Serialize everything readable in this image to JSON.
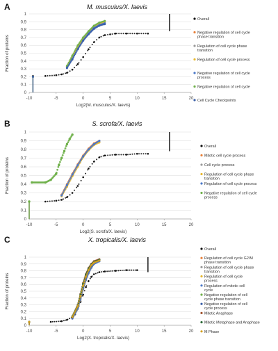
{
  "chart_data": [
    {
      "panel": "A",
      "type": "scatter",
      "title": "M. musculus/X. laevis",
      "xlabel": "Log2(M. musculus/X. laevis)",
      "ylabel": "Fraction of proteins",
      "xlim": [
        -10,
        20
      ],
      "ylim": [
        0,
        1
      ],
      "xticks": [
        -10,
        -5,
        0,
        5,
        10,
        15,
        20
      ],
      "yticks": [
        0,
        0.1,
        0.2,
        0.3,
        0.4,
        0.5,
        0.6,
        0.7,
        0.8,
        0.9,
        1
      ],
      "ytick_labels": [
        "0",
        "0.1",
        "0.2",
        "0.3",
        "0.4",
        "0.5",
        "0.6",
        "0.7",
        "0.8",
        "0.9",
        "1"
      ],
      "series": [
        {
          "name": "Overall",
          "color": "#111111",
          "size": 1.0,
          "x": [
            -9.3,
            -7.0,
            -5.0,
            -4.0,
            -3.0,
            -2.0,
            -1.0,
            0.0,
            1.0,
            2.0,
            3.0,
            4.0,
            5.0,
            6.0,
            8.0,
            10.0,
            12.0
          ],
          "y": [
            0.21,
            0.21,
            0.22,
            0.23,
            0.25,
            0.29,
            0.36,
            0.45,
            0.55,
            0.64,
            0.7,
            0.73,
            0.74,
            0.75,
            0.75,
            0.75,
            0.75
          ]
        },
        {
          "name": "Negative regulation of cell cycle phase transition",
          "color": "#e8803a",
          "size": 1.2,
          "x": [
            -9.3,
            -3.0,
            -2.0,
            -1.0,
            0.0,
            1.0,
            2.0,
            3.0,
            4.0
          ],
          "y": [
            0.2,
            0.33,
            0.45,
            0.58,
            0.68,
            0.76,
            0.83,
            0.87,
            0.88
          ]
        },
        {
          "name": "Regulation of cell cycle phase transition",
          "color": "#9a9a9a",
          "size": 1.2,
          "x": [
            -9.3,
            -3.0,
            -2.0,
            -1.0,
            0.0,
            1.0,
            2.0,
            3.0,
            4.0
          ],
          "y": [
            0.2,
            0.32,
            0.44,
            0.57,
            0.68,
            0.76,
            0.83,
            0.87,
            0.89
          ]
        },
        {
          "name": "Regulation of cell cycle process",
          "color": "#e8b830",
          "size": 1.2,
          "x": [
            -9.3,
            -3.0,
            -2.0,
            -1.0,
            0.0,
            1.0,
            2.0,
            3.0,
            4.0
          ],
          "y": [
            0.2,
            0.33,
            0.46,
            0.59,
            0.69,
            0.77,
            0.84,
            0.88,
            0.9
          ]
        },
        {
          "name": "Negative regulation of cell cycle process",
          "color": "#4a78c8",
          "size": 1.2,
          "x": [
            -9.3,
            -3.0,
            -2.0,
            -1.0,
            0.0,
            1.0,
            2.0,
            3.0,
            4.0
          ],
          "y": [
            0.2,
            0.32,
            0.43,
            0.55,
            0.66,
            0.75,
            0.82,
            0.86,
            0.88
          ]
        },
        {
          "name": "Negative regulation of cell cycle",
          "color": "#6fb04a",
          "size": 1.2,
          "x": [
            -9.3,
            -3.0,
            -2.0,
            -1.0,
            0.0,
            1.0,
            2.0,
            3.0,
            4.0
          ],
          "y": [
            0.2,
            0.34,
            0.47,
            0.6,
            0.7,
            0.78,
            0.85,
            0.89,
            0.91
          ]
        },
        {
          "name": "Cell Cycle Checkpoints",
          "color": "#3a5fa8",
          "size": 1.2,
          "x": [
            -9.3,
            -3.0,
            -2.0,
            -1.0,
            0.0,
            1.0,
            2.0,
            3.0,
            4.0
          ],
          "y": [
            0.2,
            0.31,
            0.42,
            0.55,
            0.66,
            0.74,
            0.81,
            0.85,
            0.87
          ]
        }
      ]
    },
    {
      "panel": "B",
      "type": "scatter",
      "title": "S. scrofa/X. laevis",
      "xlabel": "Log2(S. scrofa/X. laevis)",
      "ylabel": "Fraction of proteins",
      "xlim": [
        -10,
        20
      ],
      "ylim": [
        0,
        1
      ],
      "xticks": [
        -10,
        -5,
        0,
        5,
        10,
        15,
        20
      ],
      "yticks": [
        0,
        0.1,
        0.2,
        0.3,
        0.4,
        0.5,
        0.6,
        0.7,
        0.8,
        0.9,
        1
      ],
      "ytick_labels": [
        "0",
        "0.1",
        "0.2",
        "0.3",
        "0.4",
        "0.5",
        "0.6",
        "0.7",
        "0.8",
        "0.9",
        "1"
      ],
      "series": [
        {
          "name": "Overall",
          "color": "#111111",
          "size": 1.0,
          "x": [
            -10.0,
            -7.0,
            -5.0,
            -4.0,
            -3.0,
            -2.0,
            -1.0,
            0.0,
            1.0,
            2.0,
            3.0,
            4.0,
            6.0,
            8.0,
            10.0,
            12.0
          ],
          "y": [
            0.2,
            0.2,
            0.21,
            0.22,
            0.25,
            0.3,
            0.38,
            0.48,
            0.58,
            0.66,
            0.71,
            0.73,
            0.74,
            0.74,
            0.75,
            0.75
          ]
        },
        {
          "name": "Mitotic cell cycle process",
          "color": "#e8803a",
          "size": 1.2,
          "x": [
            -10.0,
            -4.0,
            -3.0,
            -2.0,
            -1.0,
            0.0,
            1.0,
            2.0,
            3.0
          ],
          "y": [
            0.2,
            0.28,
            0.4,
            0.52,
            0.63,
            0.73,
            0.81,
            0.87,
            0.9
          ]
        },
        {
          "name": "Cell cycle process",
          "color": "#9a9a9a",
          "size": 1.2,
          "x": [
            -10.0,
            -4.0,
            -3.0,
            -2.0,
            -1.0,
            0.0,
            1.0,
            2.0,
            3.0
          ],
          "y": [
            0.2,
            0.27,
            0.38,
            0.5,
            0.62,
            0.72,
            0.8,
            0.86,
            0.89
          ]
        },
        {
          "name": "Regulation of cell cycle phase transition",
          "color": "#e8b830",
          "size": 1.2,
          "x": [
            -10.0,
            -4.0,
            -3.0,
            -2.0,
            -1.0,
            0.0,
            1.0,
            2.0,
            3.0
          ],
          "y": [
            0.2,
            0.26,
            0.37,
            0.49,
            0.6,
            0.71,
            0.79,
            0.85,
            0.88
          ]
        },
        {
          "name": "Regulation of cell cycle process",
          "color": "#4a78c8",
          "size": 1.2,
          "x": [
            -10.0,
            -4.0,
            -3.0,
            -2.0,
            -1.0,
            0.0,
            1.0,
            2.0,
            3.0
          ],
          "y": [
            0.2,
            0.27,
            0.39,
            0.51,
            0.62,
            0.72,
            0.8,
            0.86,
            0.9
          ]
        },
        {
          "name": "Negative regulation of cell cycle process",
          "color": "#6fb04a",
          "size": 1.4,
          "x": [
            -10.0,
            -9.5,
            -7.0,
            -6.0,
            -5.0,
            -4.5,
            -4.0,
            -3.5,
            -3.0,
            -2.5,
            -2.0
          ],
          "y": [
            0.2,
            0.42,
            0.42,
            0.45,
            0.52,
            0.62,
            0.7,
            0.78,
            0.86,
            0.92,
            0.97
          ]
        }
      ]
    },
    {
      "panel": "C",
      "type": "scatter",
      "title": "X. tropicalis/X. laevis",
      "xlabel": "Log2(X. tropicalis/X. laevis)",
      "ylabel": "Fraction of proteins",
      "xlim": [
        -10,
        20
      ],
      "ylim": [
        0,
        1
      ],
      "xticks": [
        -10,
        -5,
        0,
        5,
        10,
        15,
        20
      ],
      "yticks": [
        0,
        0.1,
        0.2,
        0.3,
        0.4,
        0.5,
        0.6,
        0.7,
        0.8,
        0.9,
        1
      ],
      "ytick_labels": [
        "0",
        "0.1",
        "0.2",
        "0.3",
        "0.4",
        "0.5",
        "0.6",
        "0.7",
        "0.8",
        "0.9",
        "1"
      ],
      "series": [
        {
          "name": "Overall",
          "color": "#111111",
          "size": 1.0,
          "x": [
            -10.0,
            -6.0,
            -4.0,
            -3.0,
            -2.0,
            -1.5,
            -1.0,
            -0.5,
            0.0,
            0.5,
            1.0,
            1.5,
            2.0,
            3.0,
            4.0,
            6.0,
            8.0,
            10.0
          ],
          "y": [
            0.04,
            0.05,
            0.06,
            0.08,
            0.12,
            0.16,
            0.24,
            0.34,
            0.45,
            0.56,
            0.65,
            0.71,
            0.75,
            0.78,
            0.79,
            0.8,
            0.81,
            0.81
          ]
        },
        {
          "name": "Regulation of cell cycle G2/M phase transition",
          "color": "#e8803a",
          "size": 1.2,
          "x": [
            -10.0,
            -2.0,
            -1.0,
            -0.5,
            0.0,
            0.5,
            1.0,
            1.5,
            2.0,
            3.0
          ],
          "y": [
            0.05,
            0.1,
            0.25,
            0.4,
            0.55,
            0.68,
            0.78,
            0.86,
            0.91,
            0.95
          ]
        },
        {
          "name": "Regulation of cell cycle phase transition",
          "color": "#9a9a9a",
          "size": 1.2,
          "x": [
            -10.0,
            -2.0,
            -1.0,
            -0.5,
            0.0,
            0.5,
            1.0,
            1.5,
            2.0,
            3.0
          ],
          "y": [
            0.05,
            0.1,
            0.24,
            0.38,
            0.53,
            0.66,
            0.76,
            0.84,
            0.9,
            0.94
          ]
        },
        {
          "name": "Regulation of cell cycle process",
          "color": "#e8b830",
          "size": 1.2,
          "x": [
            -10.0,
            -2.0,
            -1.0,
            -0.5,
            0.0,
            0.5,
            1.0,
            1.5,
            2.0,
            3.0
          ],
          "y": [
            0.05,
            0.11,
            0.26,
            0.41,
            0.56,
            0.69,
            0.79,
            0.86,
            0.91,
            0.95
          ]
        },
        {
          "name": "Regulation of mitotic cell cycle",
          "color": "#4a78c8",
          "size": 1.2,
          "x": [
            -10.0,
            -2.0,
            -1.0,
            -0.5,
            0.0,
            0.5,
            1.0,
            1.5,
            2.0,
            3.0
          ],
          "y": [
            0.05,
            0.1,
            0.25,
            0.39,
            0.54,
            0.67,
            0.77,
            0.85,
            0.9,
            0.94
          ]
        },
        {
          "name": "Negative regulation of cell cycle phase transition",
          "color": "#6fb04a",
          "size": 1.2,
          "x": [
            -10.0,
            -2.0,
            -1.0,
            -0.5,
            0.0,
            0.5,
            1.0,
            1.5,
            2.0,
            3.0
          ],
          "y": [
            0.05,
            0.12,
            0.28,
            0.44,
            0.59,
            0.72,
            0.82,
            0.88,
            0.93,
            0.96
          ]
        },
        {
          "name": "Negative regulation of cell cycle process",
          "color": "#3a5fa8",
          "size": 1.2,
          "x": [
            -10.0,
            -2.0,
            -1.0,
            -0.5,
            0.0,
            0.5,
            1.0,
            1.5,
            2.0,
            3.0
          ],
          "y": [
            0.05,
            0.11,
            0.27,
            0.42,
            0.57,
            0.7,
            0.8,
            0.87,
            0.92,
            0.95
          ]
        },
        {
          "name": "Mitotic Anaphase",
          "color": "#a0522d",
          "size": 1.2,
          "x": [
            -10.0,
            -2.0,
            -1.0,
            -0.5,
            0.0,
            0.5,
            1.0,
            1.5,
            2.0,
            3.0
          ],
          "y": [
            0.05,
            0.13,
            0.3,
            0.46,
            0.62,
            0.75,
            0.84,
            0.9,
            0.94,
            0.97
          ]
        },
        {
          "name": "Mitotic Metaphase and Anaphase",
          "color": "#2e6b3a",
          "size": 1.2,
          "x": [
            -10.0,
            -2.0,
            -1.0,
            -0.5,
            0.0,
            0.5,
            1.0,
            1.5,
            2.0,
            3.0
          ],
          "y": [
            0.05,
            0.13,
            0.29,
            0.45,
            0.61,
            0.74,
            0.83,
            0.89,
            0.93,
            0.96
          ]
        },
        {
          "name": "M Phase",
          "color": "#d4a020",
          "size": 1.2,
          "x": [
            -10.0,
            -2.0,
            -1.0,
            -0.5,
            0.0,
            0.5,
            1.0,
            1.5,
            2.0,
            3.0
          ],
          "y": [
            0.05,
            0.12,
            0.28,
            0.43,
            0.58,
            0.71,
            0.81,
            0.88,
            0.92,
            0.95
          ]
        }
      ]
    }
  ]
}
